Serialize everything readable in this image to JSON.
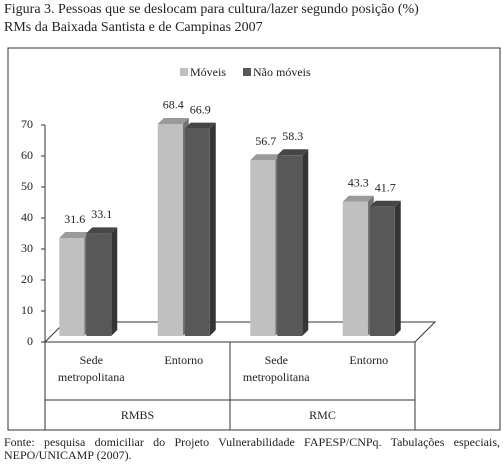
{
  "chart_data": {
    "type": "bar",
    "title": "Figura 3. Pessoas que se deslocam para cultura/lazer segundo posição (%)",
    "subtitle": "RMs da Baixada Santista e de Campinas 2007",
    "categories": [
      "Sede metropolitana",
      "Entorno",
      "Sede metropolitana",
      "Entorno"
    ],
    "groups": [
      "RMBS",
      "RMC"
    ],
    "series": [
      {
        "name": "Móveis",
        "color": "#c0c0c0",
        "values": [
          31.6,
          68.4,
          56.7,
          43.3
        ]
      },
      {
        "name": "Não móveis",
        "color": "#585858",
        "values": [
          33.1,
          66.9,
          58.3,
          41.7
        ]
      }
    ],
    "ylim": [
      0,
      70
    ],
    "yticks": [
      0,
      10,
      20,
      30,
      40,
      50,
      60,
      70
    ],
    "legend": "top",
    "note": "Fonte: pesquisa domiciliar do Projeto Vulnerabilidade FAPESP/CNPq. Tabulações especiais, NEPO/UNICAMP (2007)."
  }
}
